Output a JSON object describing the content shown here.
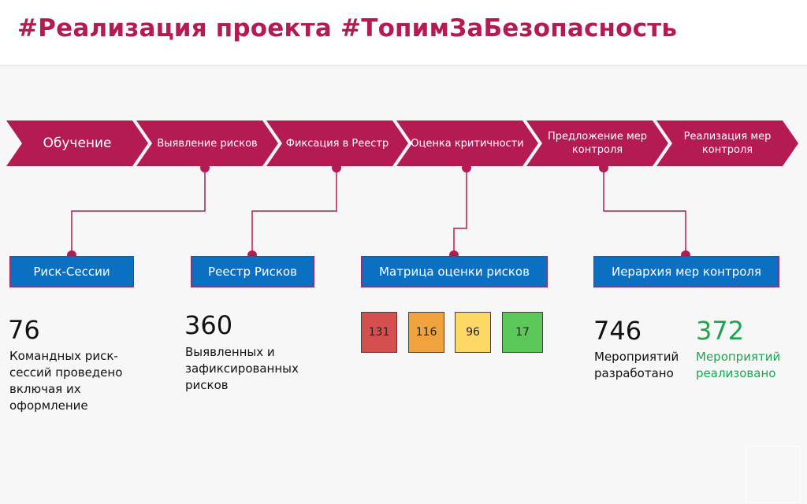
{
  "title": "#Реализация проекта #ТопимЗаБезопасность",
  "colors": {
    "accent": "#b31b52",
    "box": "#0b6fc2",
    "green": "#1aa550"
  },
  "steps": [
    "Обучение",
    "Выявление рисков",
    "Фиксация в Реестр",
    "Оценка критичности",
    "Предложение мер контроля",
    "Реализация мер контроля"
  ],
  "boxes": [
    "Риск-Сессии",
    "Реестр Рисков",
    "Матрица оценки рисков",
    "Иерархия мер контроля"
  ],
  "sessions": {
    "value": "76",
    "text": "Командных риск-сессий проведено включая их оформление"
  },
  "register": {
    "value": "360",
    "text": "Выявленных и зафиксированных рисков"
  },
  "matrix": [
    {
      "value": "131",
      "color": "#d64f4f"
    },
    {
      "value": "116",
      "color": "#f0a23c"
    },
    {
      "value": "96",
      "color": "#fdd867"
    },
    {
      "value": "17",
      "color": "#5cc85a"
    }
  ],
  "measures": {
    "developed_value": "746",
    "developed_text": "Мероприятий разработано",
    "implemented_value": "372",
    "implemented_text": "Мероприятий реализовано"
  }
}
